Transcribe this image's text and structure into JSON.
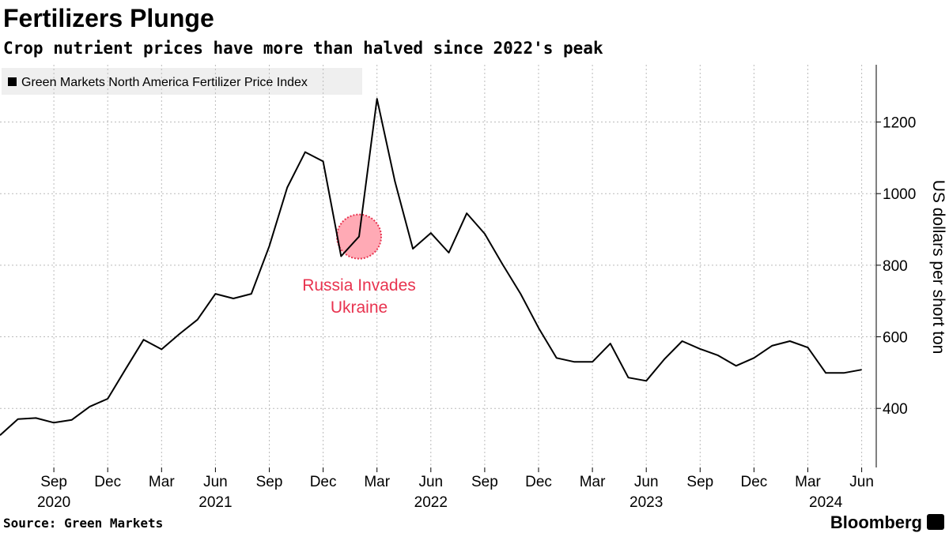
{
  "chart_data": {
    "type": "line",
    "title": "Fertilizers Plunge",
    "subtitle": "Crop nutrient prices have more than halved since 2022's peak",
    "y_label": "US dollars per short ton",
    "source": "Source: Green Markets",
    "brand": "Bloomberg",
    "x": [
      "2020-06",
      "2020-07",
      "2020-08",
      "2020-09",
      "2020-10",
      "2020-11",
      "2020-12",
      "2021-01",
      "2021-02",
      "2021-03",
      "2021-04",
      "2021-05",
      "2021-06",
      "2021-07",
      "2021-08",
      "2021-09",
      "2021-10",
      "2021-11",
      "2021-12",
      "2022-01",
      "2022-02",
      "2022-03",
      "2022-04",
      "2022-05",
      "2022-06",
      "2022-07",
      "2022-08",
      "2022-09",
      "2022-10",
      "2022-11",
      "2022-12",
      "2023-01",
      "2023-02",
      "2023-03",
      "2023-04",
      "2023-05",
      "2023-06",
      "2023-07",
      "2023-08",
      "2023-09",
      "2023-10",
      "2023-11",
      "2023-12",
      "2024-01",
      "2024-02",
      "2024-03",
      "2024-04",
      "2024-05",
      "2024-06"
    ],
    "series": [
      {
        "name": "Green Markets North America Fertilizer Price Index",
        "color": "#000000",
        "values": [
          325,
          370,
          373,
          360,
          368,
          405,
          427,
          510,
          592,
          565,
          608,
          648,
          720,
          707,
          720,
          853,
          1017,
          1116,
          1090,
          825,
          880,
          1265,
          1034,
          846,
          890,
          835,
          945,
          888,
          802,
          720,
          625,
          541,
          530,
          530,
          581,
          486,
          477,
          537,
          588,
          566,
          548,
          519,
          541,
          575,
          588,
          570,
          499,
          499,
          508
        ]
      }
    ],
    "ylim": [
      235,
      1360
    ],
    "yticks": [
      400,
      600,
      800,
      1000,
      1200
    ],
    "xticks": [
      {
        "value": "2020-09",
        "label": "Sep"
      },
      {
        "value": "2020-12",
        "label": "Dec"
      },
      {
        "value": "2021-03",
        "label": "Mar"
      },
      {
        "value": "2021-06",
        "label": "Jun"
      },
      {
        "value": "2021-09",
        "label": "Sep"
      },
      {
        "value": "2021-12",
        "label": "Dec"
      },
      {
        "value": "2022-03",
        "label": "Mar"
      },
      {
        "value": "2022-06",
        "label": "Jun"
      },
      {
        "value": "2022-09",
        "label": "Sep"
      },
      {
        "value": "2022-12",
        "label": "Dec"
      },
      {
        "value": "2023-03",
        "label": "Mar"
      },
      {
        "value": "2023-06",
        "label": "Jun"
      },
      {
        "value": "2023-09",
        "label": "Sep"
      },
      {
        "value": "2023-12",
        "label": "Dec"
      },
      {
        "value": "2024-03",
        "label": "Mar"
      },
      {
        "value": "2024-06",
        "label": "Jun"
      }
    ],
    "year_labels": [
      {
        "value": "2020-09",
        "label": "2020"
      },
      {
        "value": "2021-06",
        "label": "2021"
      },
      {
        "value": "2022-06",
        "label": "2022"
      },
      {
        "value": "2023-06",
        "label": "2023"
      },
      {
        "value": "2024-04",
        "label": "2024"
      }
    ],
    "annotation": {
      "at": "2022-02",
      "text": [
        "Russia Invades",
        "Ukraine"
      ],
      "color": "#e8334f"
    },
    "grid": true
  }
}
